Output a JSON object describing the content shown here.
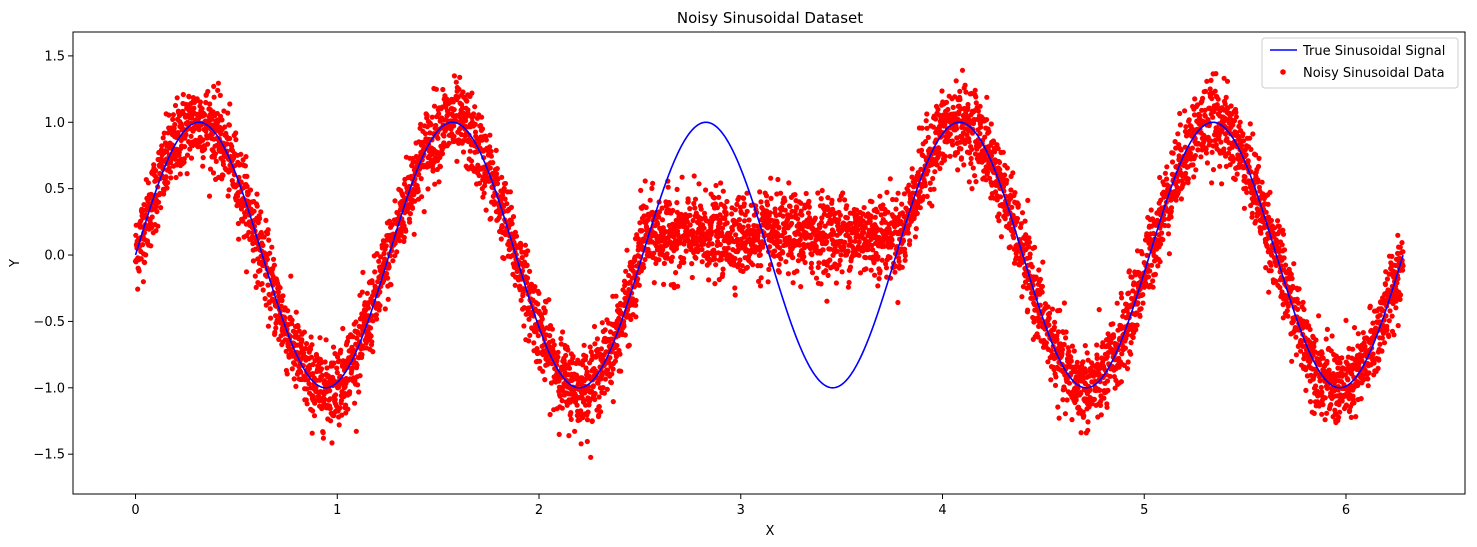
{
  "chart_data": {
    "type": "line",
    "title": "Noisy Sinusoidal Dataset",
    "xlabel": "X",
    "ylabel": "Y",
    "xlim": [
      -0.31,
      6.59
    ],
    "ylim": [
      -1.8,
      1.68
    ],
    "xticks": [
      0,
      1,
      2,
      3,
      4,
      5,
      6
    ],
    "yticks": [
      -1.5,
      -1.0,
      -0.5,
      0.0,
      0.5,
      1.0,
      1.5
    ],
    "ytick_labels": [
      "−1.5",
      "−1.0",
      "−0.5",
      "0.0",
      "0.5",
      "1.0",
      "1.5"
    ],
    "grid": false,
    "legend_position": "top-right",
    "series": [
      {
        "name": "True Sinusoidal Signal",
        "kind": "line",
        "color": "#0000ff",
        "function": "sin(5x)",
        "x_range": [
          0,
          6.283
        ]
      },
      {
        "name": "Noisy Sinusoidal Data",
        "kind": "scatter",
        "color": "#ff0000",
        "function": "sin(5x) + noise; flattened near 0.15 for 2.5 ≤ x ≤ 3.8",
        "flat_segment": {
          "x_range": [
            2.5,
            3.8
          ],
          "y_center": 0.15
        },
        "noise_std": 0.15,
        "x_range": [
          0,
          6.283
        ]
      }
    ]
  }
}
